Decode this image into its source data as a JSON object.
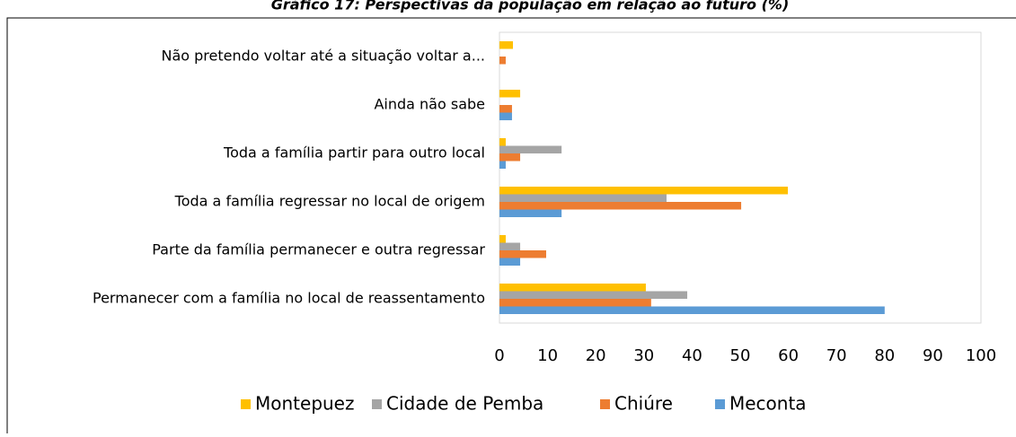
{
  "chart_data": {
    "type": "barh",
    "title": "Gráfico 17: Perspectivas da população em relação ao futuro (%)",
    "categories": [
      "Não pretendo voltar até a situação voltar a...",
      "Ainda não sabe",
      "Toda a família partir para outro local",
      "Toda a  família regressar no local de origem",
      "Parte da família permanecer e outra regressar",
      "Permanecer com a família no local de reassentamento"
    ],
    "series": [
      {
        "name": "Montepuez",
        "color": "#ffc000",
        "values": [
          2.8,
          4.3,
          1.3,
          59.9,
          1.3,
          30.4
        ]
      },
      {
        "name": "Cidade de Pemba",
        "color": "#a5a5a5",
        "values": [
          null,
          null,
          12.9,
          34.7,
          4.3,
          39
        ]
      },
      {
        "name": "Chiúre",
        "color": "#ed7d31",
        "values": [
          1.3,
          2.6,
          4.3,
          50.2,
          9.7,
          31.5
        ]
      },
      {
        "name": "Meconta",
        "color": "#5b9bd5",
        "values": [
          null,
          2.6,
          1.3,
          12.9,
          4.3,
          80
        ]
      }
    ],
    "xlim": [
      0,
      100
    ],
    "xticks": [
      0,
      10,
      20,
      30,
      40,
      50,
      60,
      70,
      80,
      90,
      100
    ],
    "legend": "bottom"
  }
}
